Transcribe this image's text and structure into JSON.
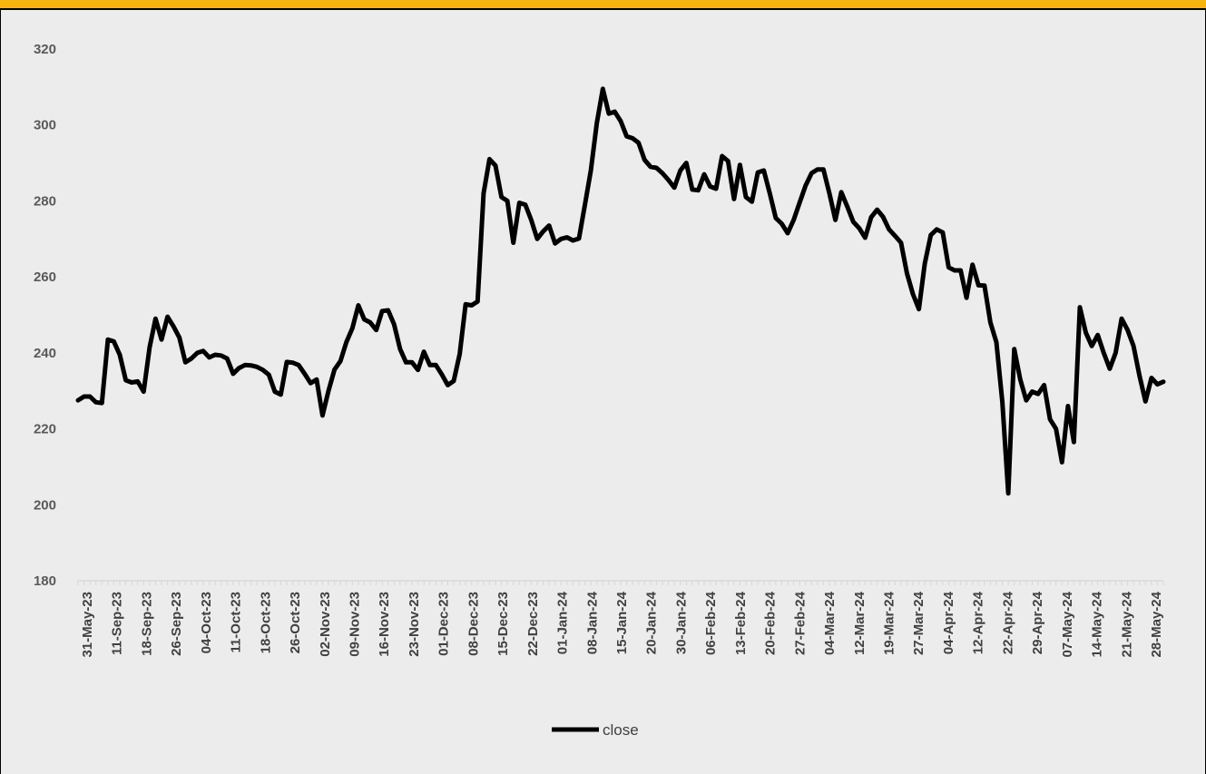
{
  "chart_data": {
    "type": "line",
    "title": "",
    "xlabel": "",
    "ylabel": "",
    "ylim": [
      180,
      320
    ],
    "yticks": [
      180,
      200,
      220,
      240,
      260,
      280,
      300,
      320
    ],
    "grid": false,
    "legend_position": "bottom",
    "line_color": "#000000",
    "tick_labels": [
      "31-May-23",
      "11-Sep-23",
      "18-Sep-23",
      "26-Sep-23",
      "04-Oct-23",
      "11-Oct-23",
      "18-Oct-23",
      "26-Oct-23",
      "02-Nov-23",
      "09-Nov-23",
      "16-Nov-23",
      "23-Nov-23",
      "01-Dec-23",
      "08-Dec-23",
      "15-Dec-23",
      "22-Dec-23",
      "01-Jan-24",
      "08-Jan-24",
      "15-Jan-24",
      "20-Jan-24",
      "30-Jan-24",
      "06-Feb-24",
      "13-Feb-24",
      "20-Feb-24",
      "27-Feb-24",
      "04-Mar-24",
      "12-Mar-24",
      "19-Mar-24",
      "27-Mar-24",
      "04-Apr-24",
      "12-Apr-24",
      "22-Apr-24",
      "29-Apr-24",
      "07-May-24",
      "14-May-24",
      "21-May-24",
      "28-May-24"
    ],
    "series": [
      {
        "name": "close",
        "values": [
          227.5,
          228.5,
          228.5,
          227,
          226.8,
          243.5,
          243,
          239.5,
          232.8,
          232.2,
          232.5,
          229.8,
          241.5,
          249,
          243.5,
          249.5,
          247,
          244,
          237.5,
          238.5,
          240,
          240.5,
          238.8,
          239.5,
          239.3,
          238.5,
          234.5,
          236,
          236.8,
          236.7,
          236.3,
          235.5,
          234.2,
          229.8,
          229,
          237.6,
          237.4,
          236.8,
          234.5,
          232,
          233,
          223.5,
          230,
          235.6,
          237.8,
          242.8,
          246.5,
          252.5,
          248.8,
          248,
          246,
          251,
          251.2,
          247.5,
          241,
          237.5,
          237.5,
          235.5,
          240.3,
          236.8,
          236.8,
          234.3,
          231.5,
          232.6,
          239.7,
          252.8,
          252.5,
          253.5,
          282,
          291,
          289.3,
          281,
          280,
          269,
          279.5,
          279,
          275,
          270,
          272,
          273.5,
          268.8,
          270,
          270.4,
          269.6,
          270.1,
          279,
          288,
          300.5,
          309.5,
          303,
          303.5,
          301,
          297,
          296.5,
          295.3,
          290.8,
          289,
          288.7,
          287.3,
          285.5,
          283.5,
          288,
          290,
          283,
          282.8,
          287,
          283.8,
          283.2,
          291.8,
          290.5,
          280.5,
          289.5,
          281,
          279.8,
          287.5,
          288,
          282,
          275.5,
          274,
          271.5,
          275,
          279.5,
          284,
          287.3,
          288.3,
          288.3,
          282,
          275,
          282.3,
          278.5,
          274.5,
          272.8,
          270.3,
          275.7,
          277.7,
          275.8,
          272.5,
          270.8,
          269,
          261,
          255.5,
          251.5,
          263.5,
          271,
          272.5,
          271.7,
          262.5,
          261.7,
          261.7,
          254.5,
          263.2,
          257.8,
          257.7,
          248,
          242.8,
          227,
          203,
          241,
          233,
          227.5,
          229.8,
          229.2,
          231.5,
          222.5,
          220,
          211.2,
          226,
          216.5,
          252,
          245.3,
          241.8,
          244.7,
          240,
          235.8,
          240,
          249,
          246,
          241.8,
          234,
          227.2,
          233.4,
          231.7,
          232.4
        ]
      }
    ]
  }
}
